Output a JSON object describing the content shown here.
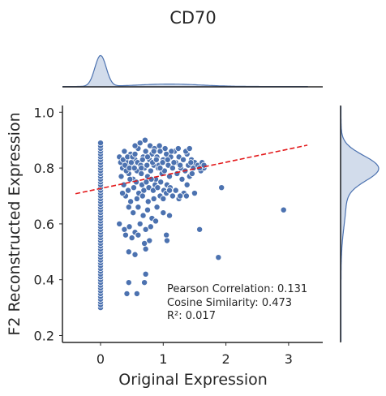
{
  "chart_data": {
    "type": "scatter",
    "title": "CD70",
    "xlabel": "Original Expression",
    "ylabel": "F2 Reconstructed Expression",
    "xlim": [
      -0.6,
      3.5
    ],
    "ylim": [
      0.18,
      1.02
    ],
    "xticks": [
      0,
      1,
      2,
      3
    ],
    "yticks": [
      0.2,
      0.4,
      0.6,
      0.8,
      1.0
    ],
    "xtick_labels": [
      "0",
      "1",
      "2",
      "3"
    ],
    "ytick_labels": [
      "0.2",
      "0.4",
      "0.6",
      "0.8",
      "1.0"
    ],
    "point_color": "#4c72b0",
    "trend_color": "#e31a1c",
    "trend_line": {
      "x": [
        -0.4,
        3.3
      ],
      "y": [
        0.708,
        0.882
      ]
    },
    "marginal_x": {
      "orientation": "top",
      "peak_at": 0,
      "secondary_bump": [
        0.5,
        1.8
      ],
      "extent": [
        -0.6,
        3.3
      ]
    },
    "marginal_y": {
      "orientation": "right",
      "peak_at": 0.8,
      "extent": [
        0.3,
        1.0
      ]
    },
    "annotations": [
      "Pearson Correlation: 0.131",
      "Cosine Similarity: 0.473",
      "R²: 0.017"
    ],
    "zero_column": [
      0.3,
      0.31,
      0.32,
      0.33,
      0.34,
      0.35,
      0.36,
      0.37,
      0.38,
      0.39,
      0.4,
      0.41,
      0.42,
      0.43,
      0.44,
      0.45,
      0.46,
      0.47,
      0.48,
      0.49,
      0.5,
      0.51,
      0.52,
      0.53,
      0.54,
      0.55,
      0.56,
      0.57,
      0.58,
      0.59,
      0.6,
      0.61,
      0.62,
      0.63,
      0.64,
      0.65,
      0.66,
      0.67,
      0.68,
      0.69,
      0.7,
      0.71,
      0.72,
      0.73,
      0.74,
      0.75,
      0.76,
      0.77,
      0.78,
      0.79,
      0.8,
      0.81,
      0.82,
      0.83,
      0.84,
      0.85,
      0.86,
      0.87,
      0.88,
      0.89
    ],
    "points": [
      [
        0.3,
        0.84
      ],
      [
        0.35,
        0.8
      ],
      [
        0.38,
        0.86
      ],
      [
        0.42,
        0.82
      ],
      [
        0.45,
        0.78
      ],
      [
        0.48,
        0.85
      ],
      [
        0.5,
        0.81
      ],
      [
        0.52,
        0.76
      ],
      [
        0.55,
        0.83
      ],
      [
        0.58,
        0.79
      ],
      [
        0.6,
        0.87
      ],
      [
        0.62,
        0.82
      ],
      [
        0.65,
        0.78
      ],
      [
        0.68,
        0.84
      ],
      [
        0.7,
        0.8
      ],
      [
        0.72,
        0.86
      ],
      [
        0.75,
        0.77
      ],
      [
        0.78,
        0.83
      ],
      [
        0.8,
        0.79
      ],
      [
        0.82,
        0.85
      ],
      [
        0.85,
        0.81
      ],
      [
        0.88,
        0.76
      ],
      [
        0.9,
        0.84
      ],
      [
        0.92,
        0.8
      ],
      [
        0.95,
        0.86
      ],
      [
        0.98,
        0.78
      ],
      [
        1.0,
        0.83
      ],
      [
        1.02,
        0.79
      ],
      [
        1.05,
        0.85
      ],
      [
        1.08,
        0.81
      ],
      [
        1.1,
        0.77
      ],
      [
        1.12,
        0.84
      ],
      [
        1.15,
        0.8
      ],
      [
        1.18,
        0.86
      ],
      [
        1.2,
        0.82
      ],
      [
        1.22,
        0.78
      ],
      [
        1.25,
        0.84
      ],
      [
        1.28,
        0.8
      ],
      [
        1.3,
        0.76
      ],
      [
        1.32,
        0.83
      ],
      [
        1.35,
        0.79
      ],
      [
        1.38,
        0.85
      ],
      [
        1.4,
        0.81
      ],
      [
        1.42,
        0.77
      ],
      [
        1.45,
        0.83
      ],
      [
        1.48,
        0.8
      ],
      [
        1.5,
        0.82
      ],
      [
        1.55,
        0.81
      ],
      [
        1.6,
        0.79
      ],
      [
        1.65,
        0.8
      ],
      [
        0.33,
        0.77
      ],
      [
        0.37,
        0.74
      ],
      [
        0.41,
        0.79
      ],
      [
        0.44,
        0.72
      ],
      [
        0.47,
        0.76
      ],
      [
        0.53,
        0.73
      ],
      [
        0.57,
        0.75
      ],
      [
        0.61,
        0.71
      ],
      [
        0.66,
        0.74
      ],
      [
        0.69,
        0.72
      ],
      [
        0.73,
        0.75
      ],
      [
        0.77,
        0.73
      ],
      [
        0.81,
        0.76
      ],
      [
        0.84,
        0.72
      ],
      [
        0.87,
        0.74
      ],
      [
        0.91,
        0.73
      ],
      [
        0.96,
        0.75
      ],
      [
        1.01,
        0.72
      ],
      [
        1.06,
        0.74
      ],
      [
        1.11,
        0.73
      ],
      [
        0.55,
        0.88
      ],
      [
        0.63,
        0.89
      ],
      [
        0.71,
        0.9
      ],
      [
        0.79,
        0.88
      ],
      [
        0.86,
        0.87
      ],
      [
        0.94,
        0.88
      ],
      [
        1.03,
        0.87
      ],
      [
        1.13,
        0.86
      ],
      [
        1.24,
        0.87
      ],
      [
        1.36,
        0.86
      ],
      [
        0.4,
        0.7
      ],
      [
        0.48,
        0.68
      ],
      [
        0.58,
        0.69
      ],
      [
        0.67,
        0.7
      ],
      [
        0.76,
        0.68
      ],
      [
        0.85,
        0.69
      ],
      [
        0.95,
        0.7
      ],
      [
        1.05,
        0.71
      ],
      [
        1.15,
        0.7
      ],
      [
        1.25,
        0.69
      ],
      [
        0.32,
        0.82
      ],
      [
        0.36,
        0.83
      ],
      [
        0.39,
        0.81
      ],
      [
        0.43,
        0.84
      ],
      [
        0.46,
        0.8
      ],
      [
        0.49,
        0.82
      ],
      [
        0.51,
        0.84
      ],
      [
        0.54,
        0.8
      ],
      [
        0.59,
        0.82
      ],
      [
        0.64,
        0.81
      ],
      [
        0.67,
        0.83
      ],
      [
        0.74,
        0.81
      ],
      [
        0.83,
        0.82
      ],
      [
        0.89,
        0.83
      ],
      [
        0.93,
        0.81
      ],
      [
        0.99,
        0.82
      ],
      [
        1.07,
        0.83
      ],
      [
        1.17,
        0.82
      ],
      [
        1.27,
        0.81
      ],
      [
        1.44,
        0.82
      ],
      [
        0.35,
        0.71
      ],
      [
        0.45,
        0.66
      ],
      [
        0.52,
        0.64
      ],
      [
        0.6,
        0.66
      ],
      [
        0.68,
        0.63
      ],
      [
        0.75,
        0.65
      ],
      [
        0.82,
        0.62
      ],
      [
        0.9,
        0.66
      ],
      [
        1.0,
        0.64
      ],
      [
        1.1,
        0.63
      ],
      [
        0.3,
        0.6
      ],
      [
        0.38,
        0.58
      ],
      [
        0.46,
        0.59
      ],
      [
        0.55,
        0.57
      ],
      [
        0.63,
        0.6
      ],
      [
        0.72,
        0.58
      ],
      [
        0.8,
        0.59
      ],
      [
        0.88,
        0.61
      ],
      [
        1.05,
        0.56
      ],
      [
        1.06,
        0.54
      ],
      [
        0.4,
        0.56
      ],
      [
        0.5,
        0.55
      ],
      [
        0.6,
        0.56
      ],
      [
        0.7,
        0.53
      ],
      [
        0.78,
        0.54
      ],
      [
        0.72,
        0.51
      ],
      [
        0.45,
        0.5
      ],
      [
        0.55,
        0.49
      ],
      [
        1.0,
        0.69
      ],
      [
        1.1,
        0.72
      ],
      [
        1.2,
        0.72
      ],
      [
        1.33,
        0.71
      ],
      [
        1.38,
        0.74
      ],
      [
        1.5,
        0.71
      ],
      [
        1.58,
        0.8
      ],
      [
        1.62,
        0.82
      ],
      [
        1.65,
        0.81
      ],
      [
        1.27,
        0.7
      ],
      [
        1.37,
        0.7
      ],
      [
        1.46,
        0.78
      ],
      [
        0.72,
        0.42
      ],
      [
        0.7,
        0.39
      ],
      [
        0.45,
        0.39
      ],
      [
        0.42,
        0.35
      ],
      [
        0.58,
        0.35
      ],
      [
        0.55,
        0.85
      ],
      [
        0.65,
        0.8
      ],
      [
        0.75,
        0.84
      ],
      [
        0.85,
        0.86
      ],
      [
        0.95,
        0.8
      ],
      [
        1.42,
        0.87
      ],
      [
        1.93,
        0.73
      ],
      [
        1.58,
        0.58
      ],
      [
        1.88,
        0.48
      ],
      [
        2.92,
        0.65
      ]
    ]
  }
}
